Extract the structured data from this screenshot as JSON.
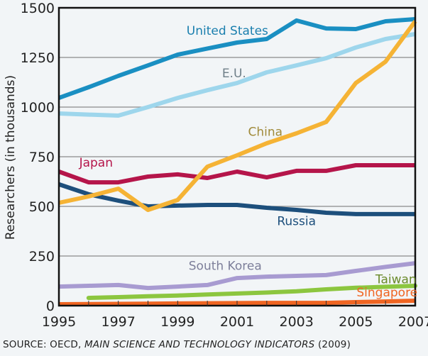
{
  "chart_data": {
    "type": "line",
    "title": "",
    "xlabel": "",
    "ylabel": "Researchers (in thousands)",
    "xlim": [
      1995,
      2007
    ],
    "ylim": [
      0,
      1500
    ],
    "grid": "horizontal",
    "x_ticks": [
      "1995",
      "1997",
      "1999",
      "2001",
      "2003",
      "2005",
      "2007"
    ],
    "y_ticks": [
      "0",
      "250",
      "500",
      "750",
      "1000",
      "1250",
      "1500"
    ],
    "y_tick_values": [
      0,
      250,
      500,
      750,
      1000,
      1250,
      1500
    ],
    "x_tick_values": [
      1995,
      1997,
      1999,
      2001,
      2003,
      2005,
      2007
    ],
    "x": [
      1995,
      1996,
      1997,
      1998,
      1999,
      2000,
      2001,
      2002,
      2003,
      2004,
      2005,
      2006,
      2007
    ],
    "series": [
      {
        "name": "United States",
        "color": "#1a8fc2",
        "label_color": "#1a7fae",
        "values": [
          1046,
          1100,
          1157,
          1210,
          1264,
          1295,
          1325,
          1343,
          1436,
          1396,
          1393,
          1432,
          1443
        ]
      },
      {
        "name": "E.U.",
        "color": "#9ed6ec",
        "label_color": "#6f7f88",
        "values": [
          968,
          962,
          957,
          1000,
          1046,
          1085,
          1121,
          1175,
          1210,
          1246,
          1300,
          1343,
          1368
        ]
      },
      {
        "name": "China",
        "color": "#f5b335",
        "label_color": "#a08a3a",
        "values": [
          518,
          550,
          589,
          482,
          532,
          700,
          757,
          818,
          868,
          925,
          1121,
          1229,
          1432
        ]
      },
      {
        "name": "Japan",
        "color": "#b5154a",
        "label_color": "#b5154a",
        "values": [
          675,
          621,
          621,
          650,
          661,
          643,
          675,
          646,
          679,
          679,
          707,
          707,
          707
        ]
      },
      {
        "name": "Russia",
        "color": "#1d4f7c",
        "label_color": "#1d4f7c",
        "values": [
          611,
          561,
          529,
          500,
          504,
          507,
          507,
          493,
          482,
          468,
          461,
          461,
          461
        ]
      },
      {
        "name": "South Korea",
        "color": "#a89bd1",
        "label_color": "#7d7f9a",
        "values": [
          96,
          100,
          104,
          89,
          96,
          104,
          139,
          146,
          150,
          154,
          175,
          195,
          214
        ]
      },
      {
        "name": "Taiwan",
        "color": "#8cc63f",
        "label_color": "#6a8a2a",
        "values": [
          null,
          39,
          43,
          47,
          51,
          56,
          61,
          66,
          72,
          82,
          90,
          95,
          100
        ]
      },
      {
        "name": "Singapore",
        "color": "#f06522",
        "label_color": "#f06522",
        "values": [
          7,
          8,
          9,
          10,
          11,
          12,
          13,
          14,
          14,
          14,
          18,
          21,
          25
        ]
      }
    ],
    "annotations": [
      "United States",
      "E.U.",
      "China",
      "Japan",
      "Russia",
      "South Korea",
      "Taiwan",
      "Singapore"
    ],
    "legend": "inline labels"
  },
  "source": {
    "prefix": "SOURCE: OECD, ",
    "title": "MAIN SCIENCE AND TECHNOLOGY INDICATORS",
    "suffix": " (2009)"
  }
}
